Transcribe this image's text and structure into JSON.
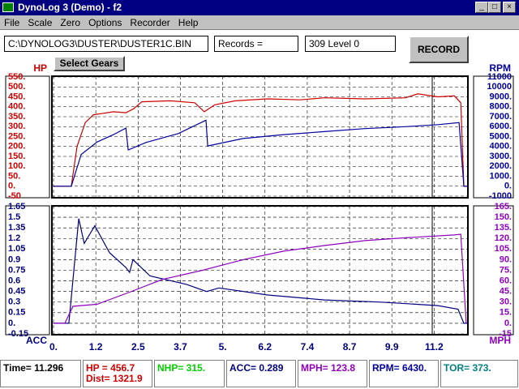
{
  "window": {
    "title": "DynoLog 3  (Demo) - f2"
  },
  "menu": [
    "File",
    "Scale",
    "Zero",
    "Options",
    "Recorder",
    "Help"
  ],
  "toolbar": {
    "file": "C:\\DYNOLOG3\\DUSTER\\DUSTER1C.BIN",
    "records": "Records =",
    "level": "309  Level 0",
    "record_button": "RECORD",
    "gears_button": "Select Gears"
  },
  "x_axis": {
    "xlim": [
      0,
      12.15
    ],
    "xticks": [
      {
        "value": 0,
        "label": "0."
      },
      {
        "value": 1.24,
        "label": "1.2"
      },
      {
        "value": 2.48,
        "label": "2.5"
      },
      {
        "value": 3.72,
        "label": "3.7"
      },
      {
        "value": 4.96,
        "label": "5."
      },
      6.2,
      {
        "value": 7.44,
        "label": "7.4"
      },
      {
        "value": 8.68,
        "label": "8.7"
      },
      {
        "value": 9.92,
        "label": "9.9"
      },
      {
        "value": 11.16,
        "label": "11.2"
      }
    ]
  },
  "charts": [
    {
      "left": {
        "label": "HP",
        "color": "#d00000",
        "ylim": [
          -50,
          550
        ],
        "yticks": [
          {
            "value": 550,
            "label": "550."
          },
          {
            "value": 500,
            "label": "500."
          },
          {
            "value": 450,
            "label": "450."
          },
          {
            "value": 400,
            "label": "400."
          },
          {
            "value": 350,
            "label": "350."
          },
          {
            "value": 300,
            "label": "300."
          },
          {
            "value": 250,
            "label": "250."
          },
          {
            "value": 200,
            "label": "200."
          },
          {
            "value": 150,
            "label": "150."
          },
          {
            "value": 100,
            "label": "100."
          },
          {
            "value": 50,
            "label": "50."
          },
          {
            "value": 0,
            "label": "0."
          },
          -50
        ]
      },
      "right": {
        "label": "RPM",
        "color": "#0000a0",
        "ylim": [
          -1000,
          11000
        ],
        "yticks": [
          11000,
          10000,
          {
            "value": 9000,
            "label": "9000."
          },
          {
            "value": 8000,
            "label": "8000."
          },
          {
            "value": 7000,
            "label": "7000."
          },
          {
            "value": 6000,
            "label": "6000."
          },
          {
            "value": 5000,
            "label": "5000."
          },
          {
            "value": 4000,
            "label": "4000."
          },
          {
            "value": 3000,
            "label": "3000."
          },
          {
            "value": 2000,
            "label": "2000."
          },
          {
            "value": 1000,
            "label": "1000."
          },
          {
            "value": 0,
            "label": "0."
          },
          -1000
        ]
      },
      "series": [
        {
          "axis": "left",
          "color": "#d00000",
          "x": [
            0,
            0.52,
            0.69,
            0.93,
            1.17,
            1.76,
            2.12,
            2.35,
            2.59,
            3.42,
            4.14,
            4.42,
            4.73,
            5.33,
            6.28,
            7.23,
            7.94,
            9.13,
            10.32,
            10.68,
            11.27,
            11.75,
            11.94,
            12.03,
            12.15
          ],
          "values": [
            0,
            0,
            200,
            320,
            360,
            375,
            370,
            390,
            425,
            430,
            420,
            375,
            410,
            430,
            440,
            435,
            445,
            440,
            445,
            465,
            450,
            455,
            420,
            0,
            0
          ]
        },
        {
          "axis": "right",
          "color": "#0000a0",
          "x": [
            0,
            0.52,
            0.81,
            1.28,
            1.76,
            2.12,
            2.19,
            2.71,
            3.66,
            4.47,
            4.52,
            5.56,
            6.75,
            7.94,
            9.13,
            10.32,
            11.27,
            11.89,
            12.03,
            12.15
          ],
          "values": [
            0,
            0,
            3200,
            4450,
            5200,
            5850,
            3650,
            4400,
            5300,
            6650,
            4050,
            4800,
            5200,
            5500,
            5800,
            6000,
            6200,
            6400,
            0,
            0
          ]
        }
      ]
    },
    {
      "left": {
        "label": "ACC",
        "color": "#000080",
        "ylim": [
          -0.15,
          1.65
        ],
        "yticks": [
          1.65,
          1.5,
          1.35,
          1.2,
          1.05,
          0.9,
          0.75,
          0.6,
          0.45,
          0.3,
          0.15,
          {
            "value": 0,
            "label": "0."
          },
          -0.15
        ]
      },
      "right": {
        "label": "MPH",
        "color": "#9000c0",
        "ylim": [
          -15,
          165
        ],
        "yticks": [
          {
            "value": 165,
            "label": "165."
          },
          {
            "value": 150,
            "label": "150."
          },
          {
            "value": 135,
            "label": "135."
          },
          {
            "value": 120,
            "label": "120."
          },
          {
            "value": 105,
            "label": "105."
          },
          {
            "value": 90,
            "label": "90."
          },
          {
            "value": 75,
            "label": "75."
          },
          {
            "value": 60,
            "label": "60."
          },
          {
            "value": 45,
            "label": "45."
          },
          {
            "value": 30,
            "label": "30."
          },
          {
            "value": 15,
            "label": "15."
          },
          {
            "value": 0,
            "label": "0."
          },
          -15
        ]
      },
      "series": [
        {
          "axis": "left",
          "color": "#000080",
          "x": [
            0,
            0.45,
            0.74,
            0.9,
            1.21,
            1.64,
            2.12,
            2.23,
            2.33,
            2.83,
            3.9,
            4.49,
            4.85,
            6.28,
            7.94,
            9.61,
            11.27,
            11.86,
            12.03,
            12.15
          ],
          "values": [
            0,
            0,
            1.48,
            1.13,
            1.38,
            1.0,
            0.79,
            0.72,
            0.9,
            0.67,
            0.55,
            0.45,
            0.5,
            0.4,
            0.33,
            0.3,
            0.25,
            0.2,
            0,
            0
          ]
        },
        {
          "axis": "right",
          "color": "#9000c0",
          "x": [
            0,
            0.33,
            0.57,
            1.28,
            2.23,
            3.19,
            4.37,
            5.56,
            6.75,
            7.94,
            9.13,
            10.32,
            11.75,
            11.94,
            12.1
          ],
          "values": [
            0,
            0,
            24,
            27,
            44,
            62,
            75,
            90,
            102,
            110,
            117,
            121,
            125,
            126,
            0
          ]
        }
      ]
    }
  ],
  "status": {
    "time": "Time= 11.296",
    "hp": "HP = 456.7",
    "dist": "Dist= 1321.9",
    "nhp": "NHP= 315.",
    "acc": "ACC= 0.289",
    "mph": "MPH= 123.8",
    "rpm": "RPM= 6430.",
    "tor": "TOR= 373."
  }
}
